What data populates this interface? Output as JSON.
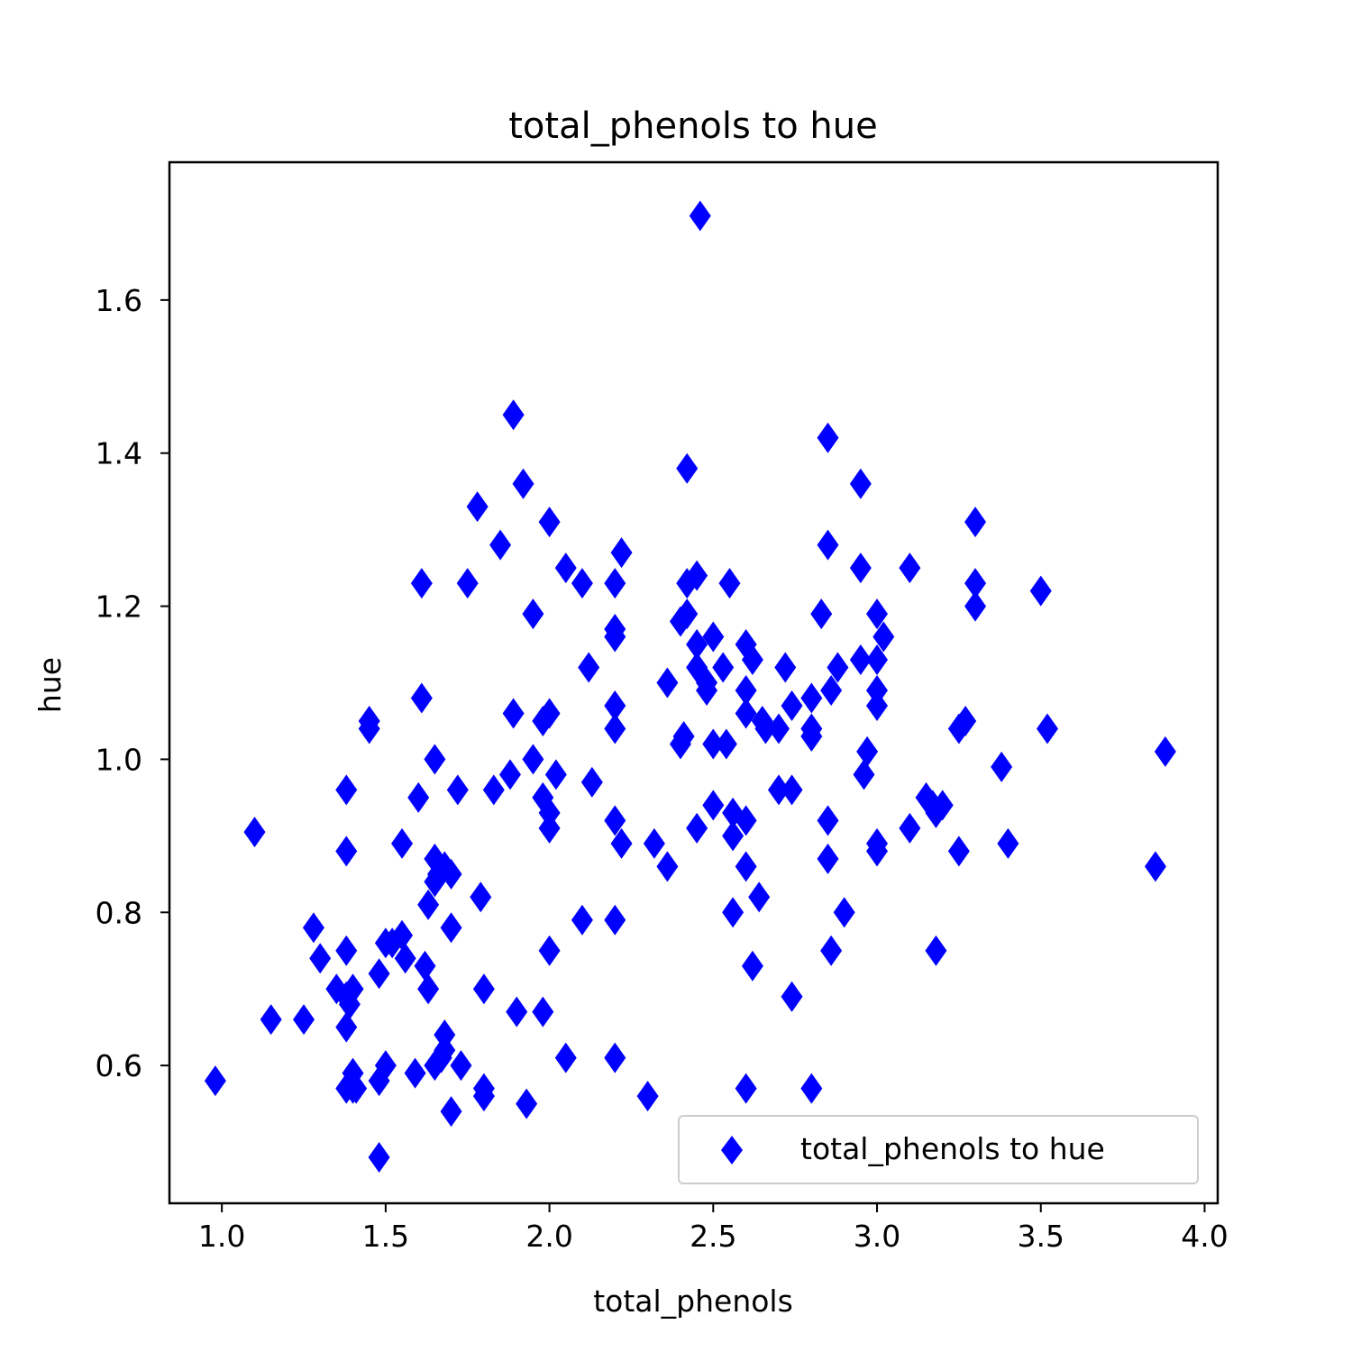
{
  "chart_data": {
    "type": "scatter",
    "title": "total_phenols to hue",
    "xlabel": "total_phenols",
    "ylabel": "hue",
    "xlim": [
      0.84,
      4.04
    ],
    "ylim": [
      0.42,
      1.78
    ],
    "x_ticks": [
      "1.0",
      "1.5",
      "2.0",
      "2.5",
      "3.0",
      "3.5",
      "4.0"
    ],
    "y_ticks": [
      "0.6",
      "0.8",
      "1.0",
      "1.2",
      "1.4",
      "1.6"
    ],
    "grid": false,
    "legend_position": "lower right",
    "marker": "thin diamond",
    "color": "#0000ff",
    "series": [
      {
        "name": "total_phenols to hue",
        "points": [
          [
            2.46,
            1.71
          ],
          [
            1.89,
            1.45
          ],
          [
            2.85,
            1.42
          ],
          [
            2.42,
            1.38
          ],
          [
            1.92,
            1.36
          ],
          [
            2.95,
            1.36
          ],
          [
            1.78,
            1.33
          ],
          [
            2.0,
            1.31
          ],
          [
            3.3,
            1.31
          ],
          [
            1.85,
            1.28
          ],
          [
            2.85,
            1.28
          ],
          [
            2.22,
            1.27
          ],
          [
            2.05,
            1.25
          ],
          [
            2.95,
            1.25
          ],
          [
            3.1,
            1.25
          ],
          [
            1.61,
            1.23
          ],
          [
            1.75,
            1.23
          ],
          [
            2.1,
            1.23
          ],
          [
            2.2,
            1.23
          ],
          [
            2.42,
            1.23
          ],
          [
            2.45,
            1.24
          ],
          [
            2.55,
            1.23
          ],
          [
            3.3,
            1.23
          ],
          [
            3.5,
            1.22
          ],
          [
            1.95,
            1.19
          ],
          [
            2.4,
            1.18
          ],
          [
            2.42,
            1.19
          ],
          [
            2.83,
            1.19
          ],
          [
            3.0,
            1.19
          ],
          [
            3.3,
            1.2
          ],
          [
            2.2,
            1.16
          ],
          [
            2.2,
            1.17
          ],
          [
            2.45,
            1.15
          ],
          [
            2.5,
            1.16
          ],
          [
            2.6,
            1.15
          ],
          [
            3.02,
            1.16
          ],
          [
            2.12,
            1.12
          ],
          [
            2.45,
            1.12
          ],
          [
            2.48,
            1.1
          ],
          [
            2.53,
            1.12
          ],
          [
            2.62,
            1.13
          ],
          [
            2.72,
            1.12
          ],
          [
            2.88,
            1.12
          ],
          [
            2.95,
            1.13
          ],
          [
            3.0,
            1.13
          ],
          [
            2.36,
            1.1
          ],
          [
            2.48,
            1.09
          ],
          [
            2.6,
            1.09
          ],
          [
            2.86,
            1.09
          ],
          [
            3.0,
            1.09
          ],
          [
            1.61,
            1.08
          ],
          [
            2.2,
            1.07
          ],
          [
            2.74,
            1.07
          ],
          [
            2.8,
            1.08
          ],
          [
            3.0,
            1.07
          ],
          [
            1.45,
            1.05
          ],
          [
            1.89,
            1.06
          ],
          [
            1.98,
            1.05
          ],
          [
            2.0,
            1.06
          ],
          [
            2.6,
            1.06
          ],
          [
            2.65,
            1.05
          ],
          [
            2.7,
            1.04
          ],
          [
            2.8,
            1.04
          ],
          [
            3.25,
            1.04
          ],
          [
            3.27,
            1.05
          ],
          [
            3.52,
            1.04
          ],
          [
            1.45,
            1.04
          ],
          [
            2.2,
            1.04
          ],
          [
            2.4,
            1.02
          ],
          [
            2.41,
            1.03
          ],
          [
            2.5,
            1.02
          ],
          [
            2.54,
            1.02
          ],
          [
            2.66,
            1.04
          ],
          [
            2.8,
            1.03
          ],
          [
            2.97,
            1.01
          ],
          [
            3.88,
            1.01
          ],
          [
            1.65,
            1.0
          ],
          [
            1.95,
            1.0
          ],
          [
            3.38,
            0.99
          ],
          [
            1.88,
            0.98
          ],
          [
            2.02,
            0.98
          ],
          [
            2.96,
            0.98
          ],
          [
            1.38,
            0.96
          ],
          [
            1.6,
            0.95
          ],
          [
            1.72,
            0.96
          ],
          [
            1.83,
            0.96
          ],
          [
            2.13,
            0.97
          ],
          [
            2.7,
            0.96
          ],
          [
            2.74,
            0.96
          ],
          [
            1.98,
            0.95
          ],
          [
            3.15,
            0.95
          ],
          [
            3.17,
            0.94
          ],
          [
            3.2,
            0.94
          ],
          [
            2.0,
            0.93
          ],
          [
            2.5,
            0.94
          ],
          [
            2.56,
            0.93
          ],
          [
            2.6,
            0.92
          ],
          [
            2.85,
            0.92
          ],
          [
            3.18,
            0.93
          ],
          [
            1.1,
            0.905
          ],
          [
            2.2,
            0.92
          ],
          [
            2.0,
            0.91
          ],
          [
            2.45,
            0.91
          ],
          [
            3.1,
            0.91
          ],
          [
            1.55,
            0.89
          ],
          [
            2.22,
            0.89
          ],
          [
            2.32,
            0.89
          ],
          [
            2.56,
            0.9
          ],
          [
            3.0,
            0.89
          ],
          [
            3.4,
            0.89
          ],
          [
            1.38,
            0.88
          ],
          [
            3.0,
            0.88
          ],
          [
            3.25,
            0.88
          ],
          [
            1.65,
            0.87
          ],
          [
            2.85,
            0.87
          ],
          [
            1.68,
            0.86
          ],
          [
            2.36,
            0.86
          ],
          [
            2.6,
            0.86
          ],
          [
            3.85,
            0.86
          ],
          [
            1.66,
            0.85
          ],
          [
            1.7,
            0.85
          ],
          [
            1.65,
            0.84
          ],
          [
            1.63,
            0.81
          ],
          [
            1.79,
            0.82
          ],
          [
            2.64,
            0.82
          ],
          [
            2.1,
            0.79
          ],
          [
            2.2,
            0.79
          ],
          [
            2.56,
            0.8
          ],
          [
            2.9,
            0.8
          ],
          [
            1.28,
            0.78
          ],
          [
            1.7,
            0.78
          ],
          [
            1.5,
            0.76
          ],
          [
            1.52,
            0.76
          ],
          [
            1.55,
            0.77
          ],
          [
            1.38,
            0.75
          ],
          [
            2.0,
            0.75
          ],
          [
            2.86,
            0.75
          ],
          [
            3.18,
            0.75
          ],
          [
            1.3,
            0.74
          ],
          [
            1.56,
            0.74
          ],
          [
            1.62,
            0.73
          ],
          [
            2.62,
            0.73
          ],
          [
            1.48,
            0.72
          ],
          [
            1.35,
            0.7
          ],
          [
            1.4,
            0.7
          ],
          [
            1.63,
            0.7
          ],
          [
            1.8,
            0.7
          ],
          [
            1.38,
            0.69
          ],
          [
            2.74,
            0.69
          ],
          [
            1.39,
            0.68
          ],
          [
            1.9,
            0.67
          ],
          [
            1.98,
            0.67
          ],
          [
            1.15,
            0.66
          ],
          [
            1.25,
            0.66
          ],
          [
            1.38,
            0.65
          ],
          [
            1.68,
            0.64
          ],
          [
            1.68,
            0.62
          ],
          [
            1.67,
            0.61
          ],
          [
            2.05,
            0.61
          ],
          [
            2.2,
            0.61
          ],
          [
            1.65,
            0.6
          ],
          [
            1.73,
            0.6
          ],
          [
            1.5,
            0.6
          ],
          [
            1.59,
            0.59
          ],
          [
            1.4,
            0.59
          ],
          [
            0.98,
            0.58
          ],
          [
            1.48,
            0.58
          ],
          [
            1.4,
            0.57
          ],
          [
            1.8,
            0.57
          ],
          [
            2.6,
            0.57
          ],
          [
            2.8,
            0.57
          ],
          [
            1.38,
            0.57
          ],
          [
            1.41,
            0.57
          ],
          [
            1.8,
            0.56
          ],
          [
            2.3,
            0.56
          ],
          [
            1.93,
            0.55
          ],
          [
            1.7,
            0.54
          ],
          [
            1.48,
            0.48
          ]
        ]
      }
    ]
  }
}
